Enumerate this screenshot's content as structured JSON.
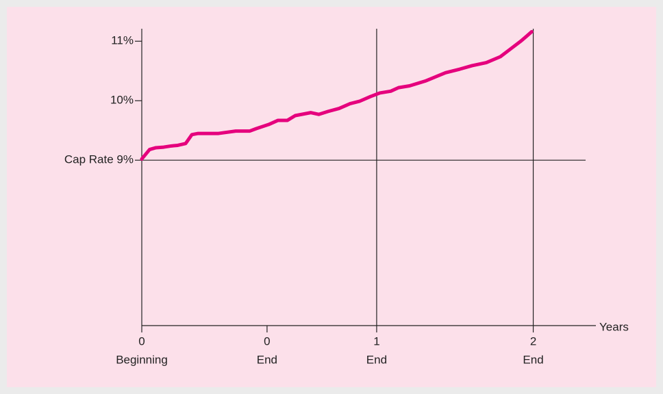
{
  "chart_data": {
    "type": "line",
    "x_axis_label": "Years",
    "xlim": [
      0,
      2.9
    ],
    "ylim": [
      6.22,
      11.21
    ],
    "xticks": [
      {
        "value": 0,
        "label": "0",
        "caption": "Beginning"
      },
      {
        "value": 0.8,
        "label": "0",
        "caption": "End"
      },
      {
        "value": 1.5,
        "label": "1",
        "caption": "End"
      },
      {
        "value": 2.5,
        "label": "2",
        "caption": "End"
      }
    ],
    "yticks": [
      {
        "value": 9,
        "label": "Cap Rate 9%"
      },
      {
        "value": 10,
        "label": "10%"
      },
      {
        "value": 11,
        "label": "11%"
      }
    ],
    "hline": 9,
    "vlines": [
      1.5,
      2.5
    ],
    "color": "#e5007d",
    "x": [
      0,
      0.05,
      0.09,
      0.14,
      0.19,
      0.23,
      0.28,
      0.32,
      0.36,
      0.49,
      0.6,
      0.69,
      0.73,
      0.81,
      0.87,
      0.93,
      0.98,
      1.08,
      1.13,
      1.19,
      1.26,
      1.33,
      1.39,
      1.46,
      1.52,
      1.59,
      1.64,
      1.71,
      1.81,
      1.94,
      2.03,
      2.11,
      2.2,
      2.29,
      2.35,
      2.42,
      2.46,
      2.49
    ],
    "values": [
      9.02,
      9.18,
      9.21,
      9.22,
      9.24,
      9.25,
      9.28,
      9.43,
      9.45,
      9.45,
      9.49,
      9.49,
      9.53,
      9.6,
      9.67,
      9.67,
      9.75,
      9.8,
      9.77,
      9.82,
      9.87,
      9.95,
      9.99,
      10.07,
      10.13,
      10.16,
      10.22,
      10.25,
      10.33,
      10.47,
      10.53,
      10.59,
      10.64,
      10.74,
      10.86,
      11.0,
      11.09,
      11.16
    ]
  }
}
